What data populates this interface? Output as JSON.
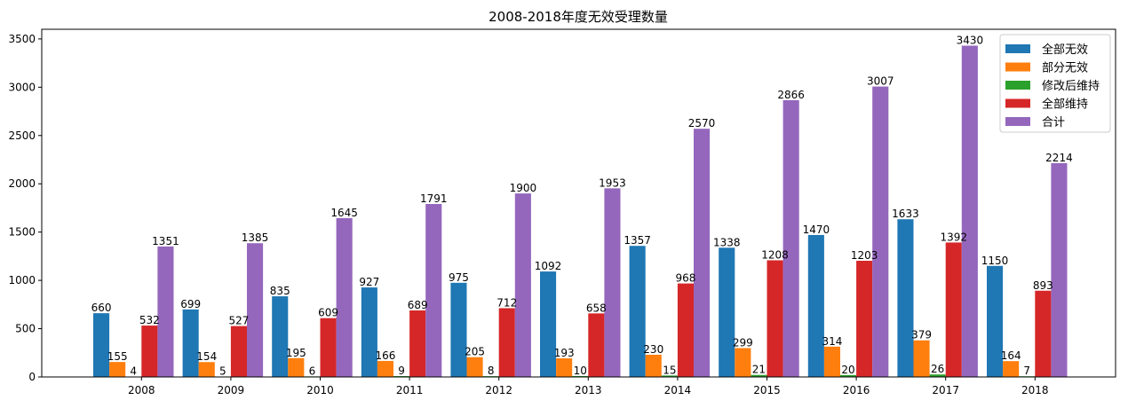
{
  "chart_data": {
    "type": "bar",
    "title": "2008-2018年度无效受理数量",
    "xlabel": "",
    "ylabel": "",
    "categories": [
      "2008",
      "2009",
      "2010",
      "2011",
      "2012",
      "2013",
      "2014",
      "2015",
      "2016",
      "2017",
      "2018"
    ],
    "ylim": [
      0,
      3600
    ],
    "yticks": [
      0,
      500,
      1000,
      1500,
      2000,
      2500,
      3000,
      3500
    ],
    "grid": false,
    "legend_position": "top-right",
    "series": [
      {
        "name": "全部无效",
        "color": "#1f77b4",
        "values": [
          660,
          699,
          835,
          927,
          975,
          1092,
          1357,
          1338,
          1470,
          1633,
          1150
        ]
      },
      {
        "name": "部分无效",
        "color": "#ff7f0e",
        "values": [
          155,
          154,
          195,
          166,
          205,
          193,
          230,
          299,
          314,
          379,
          164
        ]
      },
      {
        "name": "修改后维持",
        "color": "#2ca02c",
        "values": [
          4,
          5,
          6,
          9,
          8,
          10,
          15,
          21,
          20,
          26,
          7
        ]
      },
      {
        "name": "全部维持",
        "color": "#d62728",
        "values": [
          532,
          527,
          609,
          689,
          712,
          658,
          968,
          1208,
          1203,
          1392,
          893
        ]
      },
      {
        "name": "合计",
        "color": "#9467bd",
        "values": [
          1351,
          1385,
          1645,
          1791,
          1900,
          1953,
          2570,
          2866,
          3007,
          3430,
          2214
        ]
      }
    ]
  }
}
